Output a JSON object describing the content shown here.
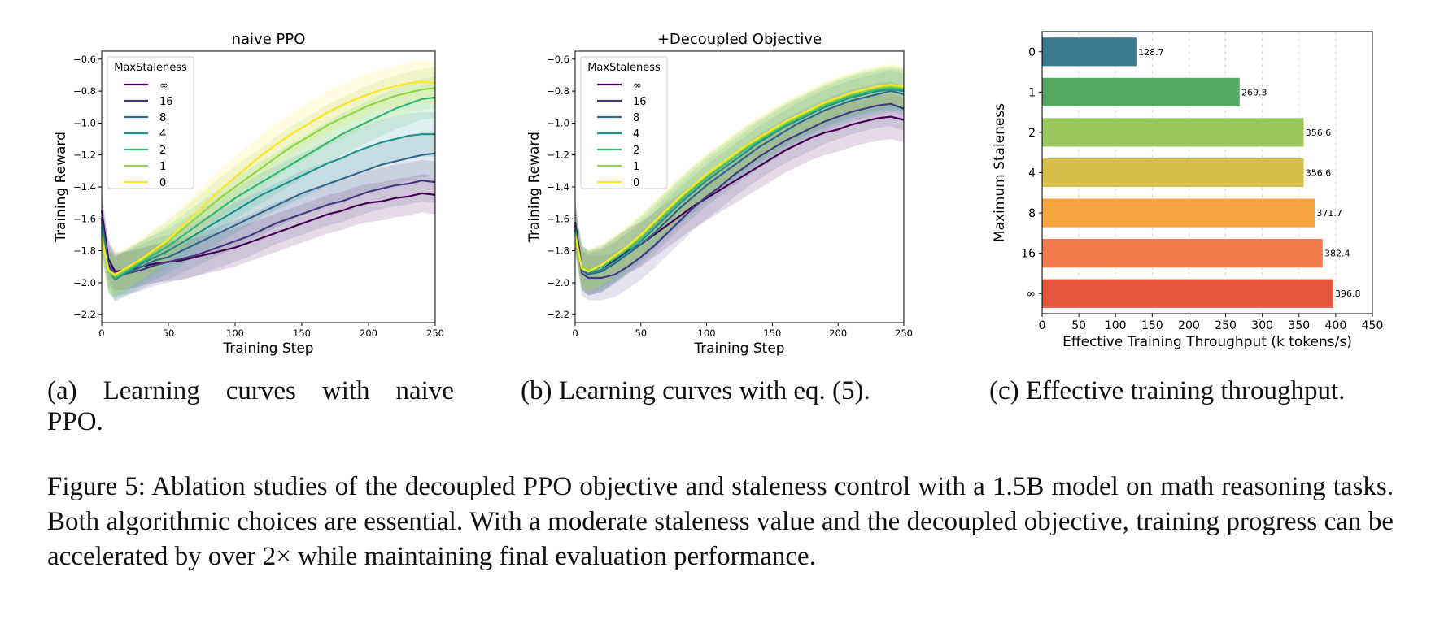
{
  "chart_data": [
    {
      "type": "line",
      "title": "naive PPO",
      "xlabel": "Training Step",
      "ylabel": "Training Reward",
      "xlim": [
        0,
        250
      ],
      "ylim": [
        -2.25,
        -0.55
      ],
      "xticks": [
        0,
        50,
        100,
        150,
        200,
        250
      ],
      "yticks": [
        -2.2,
        -2.0,
        -1.8,
        -1.6,
        -1.4,
        -1.2,
        -1.0,
        -0.8,
        -0.6
      ],
      "legend_title": "MaxStaleness",
      "legend_position": "top-left",
      "shaded_band": true,
      "series": [
        {
          "name": "∞",
          "color": "#440154",
          "x": [
            0,
            5,
            10,
            20,
            30,
            40,
            50,
            60,
            70,
            80,
            90,
            100,
            110,
            120,
            130,
            140,
            150,
            160,
            170,
            180,
            190,
            200,
            210,
            220,
            230,
            240,
            250
          ],
          "y": [
            -1.55,
            -1.85,
            -1.93,
            -1.92,
            -1.9,
            -1.88,
            -1.87,
            -1.86,
            -1.84,
            -1.82,
            -1.8,
            -1.78,
            -1.75,
            -1.72,
            -1.69,
            -1.66,
            -1.63,
            -1.6,
            -1.57,
            -1.55,
            -1.52,
            -1.5,
            -1.49,
            -1.47,
            -1.46,
            -1.44,
            -1.45
          ],
          "band": 0.12
        },
        {
          "name": "16",
          "color": "#443983",
          "x": [
            0,
            5,
            10,
            20,
            30,
            40,
            50,
            60,
            70,
            80,
            90,
            100,
            110,
            120,
            130,
            140,
            150,
            160,
            170,
            180,
            190,
            200,
            210,
            220,
            230,
            240,
            250
          ],
          "y": [
            -1.6,
            -1.88,
            -1.95,
            -1.94,
            -1.92,
            -1.89,
            -1.87,
            -1.85,
            -1.83,
            -1.8,
            -1.77,
            -1.74,
            -1.71,
            -1.67,
            -1.63,
            -1.6,
            -1.57,
            -1.54,
            -1.51,
            -1.49,
            -1.46,
            -1.43,
            -1.41,
            -1.39,
            -1.38,
            -1.36,
            -1.37
          ],
          "band": 0.13
        },
        {
          "name": "8",
          "color": "#31688e",
          "x": [
            0,
            5,
            10,
            20,
            30,
            40,
            50,
            60,
            70,
            80,
            90,
            100,
            110,
            120,
            130,
            140,
            150,
            160,
            170,
            180,
            190,
            200,
            210,
            220,
            230,
            240,
            250
          ],
          "y": [
            -1.62,
            -1.9,
            -1.97,
            -1.94,
            -1.9,
            -1.86,
            -1.84,
            -1.8,
            -1.76,
            -1.72,
            -1.68,
            -1.64,
            -1.6,
            -1.56,
            -1.52,
            -1.48,
            -1.44,
            -1.41,
            -1.38,
            -1.35,
            -1.32,
            -1.29,
            -1.26,
            -1.24,
            -1.22,
            -1.2,
            -1.19
          ],
          "band": 0.14
        },
        {
          "name": "4",
          "color": "#21918c",
          "x": [
            0,
            5,
            10,
            20,
            30,
            40,
            50,
            60,
            70,
            80,
            90,
            100,
            110,
            120,
            130,
            140,
            150,
            160,
            170,
            180,
            190,
            200,
            210,
            220,
            230,
            240,
            250
          ],
          "y": [
            -1.65,
            -1.92,
            -1.98,
            -1.93,
            -1.88,
            -1.84,
            -1.8,
            -1.75,
            -1.7,
            -1.65,
            -1.6,
            -1.55,
            -1.5,
            -1.45,
            -1.41,
            -1.37,
            -1.33,
            -1.29,
            -1.25,
            -1.22,
            -1.18,
            -1.15,
            -1.12,
            -1.1,
            -1.08,
            -1.07,
            -1.07
          ],
          "band": 0.14
        },
        {
          "name": "2",
          "color": "#35b779",
          "x": [
            0,
            5,
            10,
            20,
            30,
            40,
            50,
            60,
            70,
            80,
            90,
            100,
            110,
            120,
            130,
            140,
            150,
            160,
            170,
            180,
            190,
            200,
            210,
            220,
            230,
            240,
            250
          ],
          "y": [
            -1.68,
            -1.93,
            -1.97,
            -1.92,
            -1.87,
            -1.82,
            -1.77,
            -1.71,
            -1.65,
            -1.59,
            -1.53,
            -1.47,
            -1.42,
            -1.37,
            -1.32,
            -1.27,
            -1.22,
            -1.17,
            -1.12,
            -1.07,
            -1.03,
            -0.99,
            -0.95,
            -0.91,
            -0.88,
            -0.85,
            -0.84
          ],
          "band": 0.13
        },
        {
          "name": "1",
          "color": "#90d743",
          "x": [
            0,
            5,
            10,
            20,
            30,
            40,
            50,
            60,
            70,
            80,
            90,
            100,
            110,
            120,
            130,
            140,
            150,
            160,
            170,
            180,
            190,
            200,
            210,
            220,
            230,
            240,
            250
          ],
          "y": [
            -1.7,
            -1.93,
            -1.96,
            -1.91,
            -1.86,
            -1.8,
            -1.74,
            -1.67,
            -1.6,
            -1.53,
            -1.46,
            -1.4,
            -1.34,
            -1.28,
            -1.22,
            -1.16,
            -1.11,
            -1.06,
            -1.01,
            -0.97,
            -0.93,
            -0.89,
            -0.86,
            -0.83,
            -0.81,
            -0.79,
            -0.78
          ],
          "band": 0.13
        },
        {
          "name": "0",
          "color": "#fde725",
          "x": [
            0,
            5,
            10,
            20,
            30,
            40,
            50,
            60,
            70,
            80,
            90,
            100,
            110,
            120,
            130,
            140,
            150,
            160,
            170,
            180,
            190,
            200,
            210,
            220,
            230,
            240,
            250
          ],
          "y": [
            -1.72,
            -1.92,
            -1.95,
            -1.9,
            -1.85,
            -1.79,
            -1.73,
            -1.65,
            -1.57,
            -1.49,
            -1.41,
            -1.34,
            -1.27,
            -1.2,
            -1.14,
            -1.08,
            -1.03,
            -0.98,
            -0.93,
            -0.89,
            -0.85,
            -0.82,
            -0.79,
            -0.77,
            -0.75,
            -0.74,
            -0.75
          ],
          "band": 0.13
        }
      ]
    },
    {
      "type": "line",
      "title": "+Decoupled Objective",
      "xlabel": "Training Step",
      "ylabel": "Training Reward",
      "xlim": [
        0,
        250
      ],
      "ylim": [
        -2.25,
        -0.55
      ],
      "xticks": [
        0,
        50,
        100,
        150,
        200,
        250
      ],
      "yticks": [
        -2.2,
        -2.0,
        -1.8,
        -1.6,
        -1.4,
        -1.2,
        -1.0,
        -0.8,
        -0.6
      ],
      "legend_title": "MaxStaleness",
      "legend_position": "top-left",
      "shaded_band": true,
      "series": [
        {
          "name": "∞",
          "color": "#440154",
          "x": [
            0,
            5,
            10,
            20,
            30,
            40,
            50,
            60,
            70,
            80,
            90,
            100,
            110,
            120,
            130,
            140,
            150,
            160,
            170,
            180,
            190,
            200,
            210,
            220,
            230,
            240,
            250
          ],
          "y": [
            -1.62,
            -1.9,
            -1.94,
            -1.92,
            -1.86,
            -1.8,
            -1.76,
            -1.7,
            -1.64,
            -1.58,
            -1.52,
            -1.47,
            -1.42,
            -1.37,
            -1.32,
            -1.27,
            -1.22,
            -1.17,
            -1.13,
            -1.09,
            -1.06,
            -1.04,
            -1.01,
            -0.99,
            -0.97,
            -0.96,
            -0.98
          ],
          "band": 0.14
        },
        {
          "name": "16",
          "color": "#443983",
          "x": [
            0,
            5,
            10,
            20,
            30,
            40,
            50,
            60,
            70,
            80,
            90,
            100,
            110,
            120,
            130,
            140,
            150,
            160,
            170,
            180,
            190,
            200,
            210,
            220,
            230,
            240,
            250
          ],
          "y": [
            -1.64,
            -1.94,
            -1.97,
            -1.97,
            -1.95,
            -1.9,
            -1.84,
            -1.77,
            -1.69,
            -1.61,
            -1.53,
            -1.46,
            -1.4,
            -1.33,
            -1.27,
            -1.21,
            -1.16,
            -1.11,
            -1.07,
            -1.03,
            -0.99,
            -0.96,
            -0.93,
            -0.91,
            -0.89,
            -0.88,
            -0.91
          ],
          "band": 0.14
        },
        {
          "name": "8",
          "color": "#31688e",
          "x": [
            0,
            5,
            10,
            20,
            30,
            40,
            50,
            60,
            70,
            80,
            90,
            100,
            110,
            120,
            130,
            140,
            150,
            160,
            170,
            180,
            190,
            200,
            210,
            220,
            230,
            240,
            250
          ],
          "y": [
            -1.66,
            -1.92,
            -1.95,
            -1.93,
            -1.88,
            -1.82,
            -1.76,
            -1.69,
            -1.61,
            -1.53,
            -1.46,
            -1.39,
            -1.33,
            -1.27,
            -1.21,
            -1.15,
            -1.1,
            -1.05,
            -1.0,
            -0.96,
            -0.92,
            -0.89,
            -0.86,
            -0.84,
            -0.82,
            -0.8,
            -0.82
          ],
          "band": 0.13
        },
        {
          "name": "4",
          "color": "#21918c",
          "x": [
            0,
            5,
            10,
            20,
            30,
            40,
            50,
            60,
            70,
            80,
            90,
            100,
            110,
            120,
            130,
            140,
            150,
            160,
            170,
            180,
            190,
            200,
            210,
            220,
            230,
            240,
            250
          ],
          "y": [
            -1.67,
            -1.91,
            -1.94,
            -1.92,
            -1.87,
            -1.81,
            -1.74,
            -1.66,
            -1.58,
            -1.5,
            -1.43,
            -1.36,
            -1.3,
            -1.24,
            -1.18,
            -1.12,
            -1.07,
            -1.02,
            -0.98,
            -0.94,
            -0.9,
            -0.87,
            -0.84,
            -0.82,
            -0.8,
            -0.79,
            -0.8
          ],
          "band": 0.13
        },
        {
          "name": "2",
          "color": "#35b779",
          "x": [
            0,
            5,
            10,
            20,
            30,
            40,
            50,
            60,
            70,
            80,
            90,
            100,
            110,
            120,
            130,
            140,
            150,
            160,
            170,
            180,
            190,
            200,
            210,
            220,
            230,
            240,
            250
          ],
          "y": [
            -1.68,
            -1.9,
            -1.93,
            -1.9,
            -1.85,
            -1.79,
            -1.72,
            -1.64,
            -1.56,
            -1.48,
            -1.41,
            -1.34,
            -1.28,
            -1.22,
            -1.16,
            -1.11,
            -1.06,
            -1.01,
            -0.97,
            -0.93,
            -0.89,
            -0.86,
            -0.83,
            -0.81,
            -0.79,
            -0.78,
            -0.79
          ],
          "band": 0.13
        },
        {
          "name": "1",
          "color": "#90d743",
          "x": [
            0,
            5,
            10,
            20,
            30,
            40,
            50,
            60,
            70,
            80,
            90,
            100,
            110,
            120,
            130,
            140,
            150,
            160,
            170,
            180,
            190,
            200,
            210,
            220,
            230,
            240,
            250
          ],
          "y": [
            -1.7,
            -1.9,
            -1.92,
            -1.89,
            -1.84,
            -1.78,
            -1.71,
            -1.63,
            -1.55,
            -1.47,
            -1.4,
            -1.33,
            -1.27,
            -1.21,
            -1.15,
            -1.1,
            -1.05,
            -1.0,
            -0.96,
            -0.92,
            -0.88,
            -0.85,
            -0.82,
            -0.8,
            -0.78,
            -0.77,
            -0.78
          ],
          "band": 0.13
        },
        {
          "name": "0",
          "color": "#fde725",
          "x": [
            0,
            5,
            10,
            20,
            30,
            40,
            50,
            60,
            70,
            80,
            90,
            100,
            110,
            120,
            130,
            140,
            150,
            160,
            170,
            180,
            190,
            200,
            210,
            220,
            230,
            240,
            250
          ],
          "y": [
            -1.71,
            -1.91,
            -1.93,
            -1.89,
            -1.83,
            -1.77,
            -1.7,
            -1.62,
            -1.54,
            -1.46,
            -1.39,
            -1.32,
            -1.26,
            -1.2,
            -1.14,
            -1.09,
            -1.04,
            -0.99,
            -0.95,
            -0.91,
            -0.87,
            -0.84,
            -0.81,
            -0.79,
            -0.77,
            -0.76,
            -0.77
          ],
          "band": 0.13
        }
      ]
    },
    {
      "type": "bar",
      "orientation": "horizontal",
      "title": "",
      "xlabel": "Effective Training Throughput (k tokens/s)",
      "ylabel": "Maximum Staleness",
      "xlim": [
        0,
        450
      ],
      "xticks": [
        0,
        50,
        100,
        150,
        200,
        250,
        300,
        350,
        400,
        450
      ],
      "grid": "vertical dashed",
      "categories": [
        "0",
        "1",
        "2",
        "4",
        "8",
        "16",
        "∞"
      ],
      "values": [
        128.7,
        269.3,
        356.6,
        356.6,
        371.7,
        382.4,
        396.8
      ],
      "value_labels": [
        "128.7",
        "269.3",
        "356.6",
        "356.6",
        "371.7",
        "382.4",
        "396.8"
      ],
      "colors": [
        "#3d7a8f",
        "#55a860",
        "#9bc75a",
        "#d7bd4a",
        "#f7a43e",
        "#f07a4a",
        "#e4553f"
      ]
    }
  ],
  "subcaptions": {
    "a_line1": "(a) Learning curves with naive",
    "a_line2": "PPO.",
    "b": "(b) Learning curves with eq. (5).",
    "c": "(c) Effective training throughput."
  },
  "caption": "Figure 5: Ablation studies of the decoupled PPO objective and staleness control with a 1.5B model on math reasoning tasks. Both algorithmic choices are essential. With a moderate staleness value and the decoupled objective, training progress can be accelerated by over 2× while maintaining final evaluation performance."
}
